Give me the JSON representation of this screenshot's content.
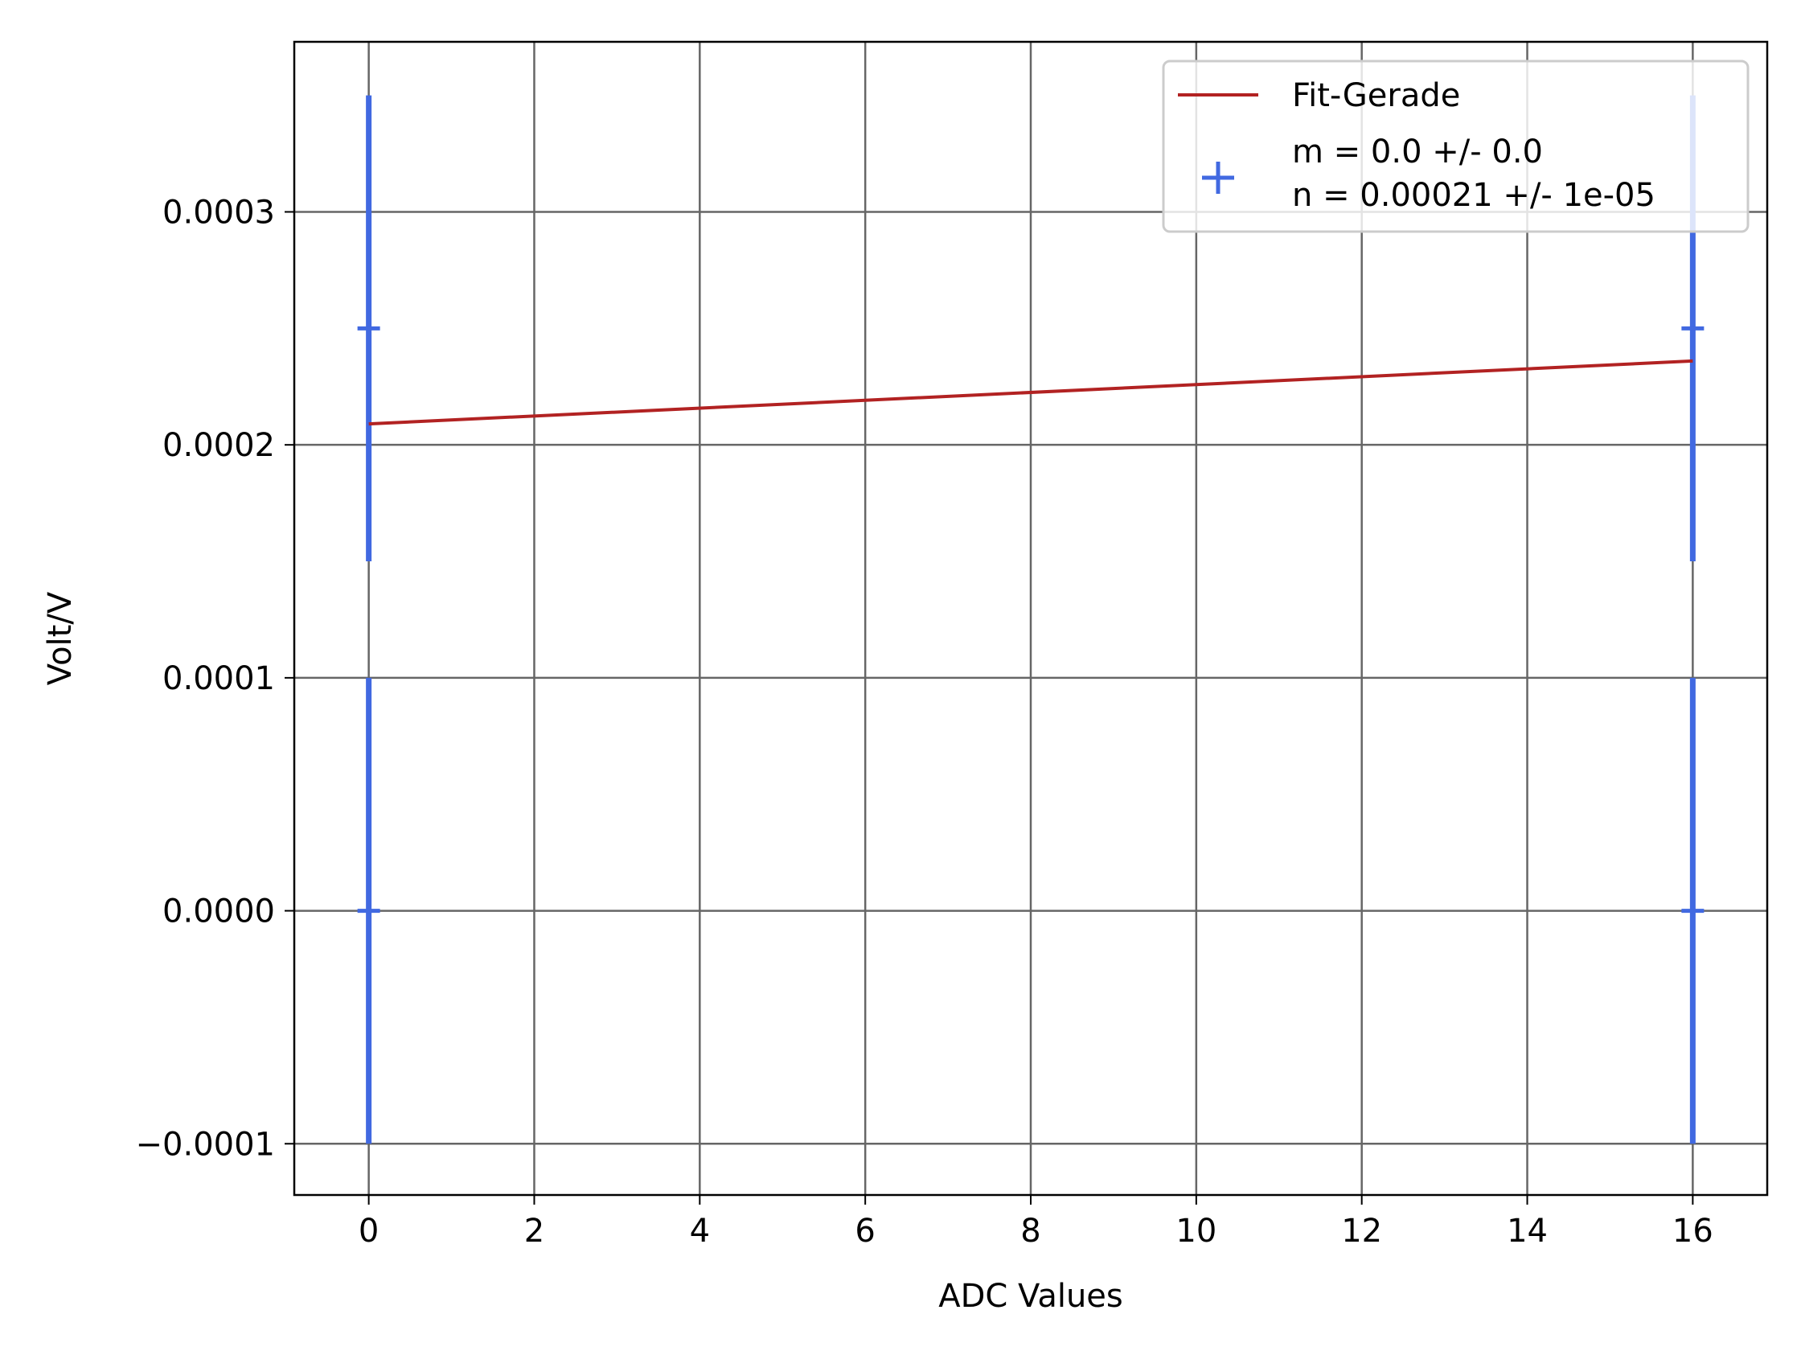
{
  "chart_data": {
    "type": "scatter",
    "xlabel": "ADC Values",
    "ylabel": "Volt/V",
    "xlim": [
      -0.9,
      16.9
    ],
    "ylim": [
      -0.000122,
      0.000373
    ],
    "x_ticks": [
      0,
      2,
      4,
      6,
      8,
      10,
      12,
      14,
      16
    ],
    "x_tick_labels": [
      "0",
      "2",
      "4",
      "6",
      "8",
      "10",
      "12",
      "14",
      "16"
    ],
    "y_ticks": [
      -0.0001,
      0.0,
      0.0001,
      0.0002,
      0.0003
    ],
    "y_tick_labels": [
      "−0.0001",
      "0.0000",
      "0.0001",
      "0.0002",
      "0.0003"
    ],
    "grid": true,
    "legend_position": "top-right",
    "series": [
      {
        "name": "Fit-Gerade",
        "kind": "line",
        "color": "#b22222",
        "x": [
          0,
          16
        ],
        "y": [
          0.000209,
          0.000236
        ]
      },
      {
        "name_lines": [
          "m = 0.0 +/- 0.0",
          "n = 0.00021 +/- 1e-05"
        ],
        "kind": "errorbar",
        "marker": "plus",
        "color": "#4169e1",
        "points": [
          {
            "x": 0,
            "y": 0.0,
            "yerr": 0.0001
          },
          {
            "x": 0,
            "y": 0.00025,
            "yerr": 0.0001
          },
          {
            "x": 16,
            "y": 0.0,
            "yerr": 0.0001
          },
          {
            "x": 16,
            "y": 0.00025,
            "yerr": 0.0001
          }
        ]
      }
    ]
  }
}
